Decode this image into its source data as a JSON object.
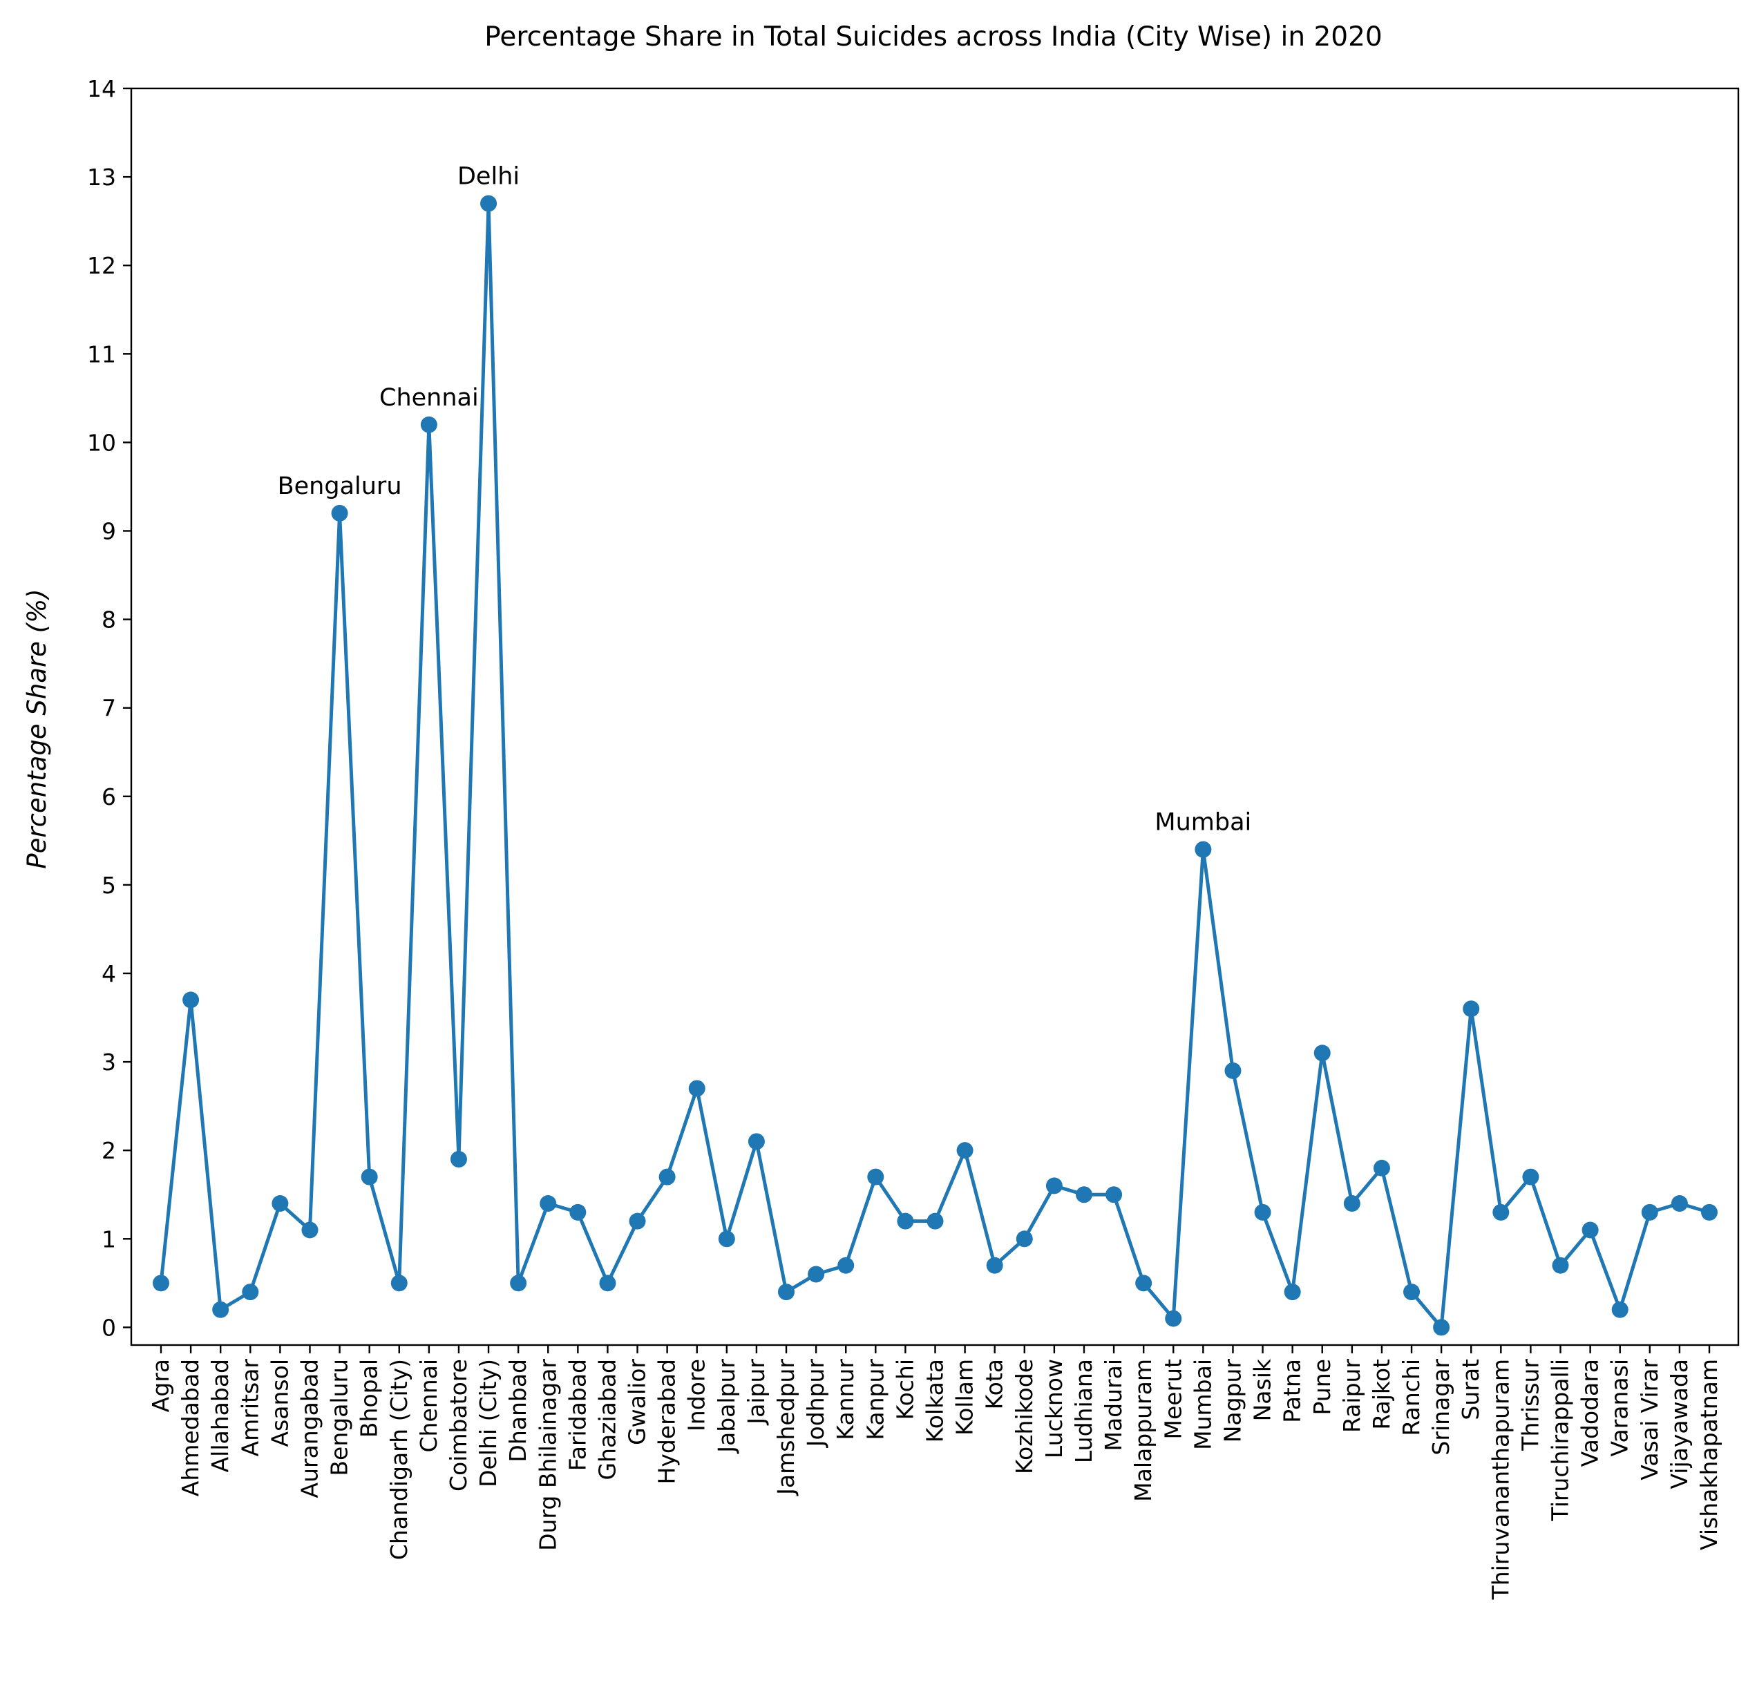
{
  "chart_data": {
    "type": "line",
    "title": "Percentage Share in Total Suicides across India (City Wise) in 2020",
    "xlabel": "",
    "ylabel": "Percentage Share (%)",
    "ylim": [
      -0.2,
      14
    ],
    "yticks": [
      0,
      1,
      2,
      3,
      4,
      5,
      6,
      7,
      8,
      9,
      10,
      11,
      12,
      13,
      14
    ],
    "grid": false,
    "legend": "none",
    "colors": {
      "series": "#1f77b4"
    },
    "categories": [
      "Agra",
      "Ahmedabad",
      "Allahabad",
      "Amritsar",
      "Asansol",
      "Aurangabad",
      "Bengaluru",
      "Bhopal",
      "Chandigarh (City)",
      "Chennai",
      "Coimbatore",
      "Delhi (City)",
      "Dhanbad",
      "Durg Bhilainagar",
      "Faridabad",
      "Ghaziabad",
      "Gwalior",
      "Hyderabad",
      "Indore",
      "Jabalpur",
      "Jaipur",
      "Jamshedpur",
      "Jodhpur",
      "Kannur",
      "Kanpur",
      "Kochi",
      "Kolkata",
      "Kollam",
      "Kota",
      "Kozhikode",
      "Lucknow",
      "Ludhiana",
      "Madurai",
      "Malappuram",
      "Meerut",
      "Mumbai",
      "Nagpur",
      "Nasik",
      "Patna",
      "Pune",
      "Raipur",
      "Rajkot",
      "Ranchi",
      "Srinagar",
      "Surat",
      "Thiruvananthapuram",
      "Thrissur",
      "Tiruchirappalli",
      "Vadodara",
      "Varanasi",
      "Vasai Virar",
      "Vijayawada",
      "Vishakhapatnam"
    ],
    "series": [
      {
        "values": [
          0.5,
          3.7,
          0.2,
          0.4,
          1.4,
          1.1,
          9.2,
          1.7,
          0.5,
          10.2,
          1.9,
          12.7,
          0.5,
          1.4,
          1.3,
          0.5,
          1.2,
          1.7,
          2.7,
          1.0,
          2.1,
          0.4,
          0.6,
          0.7,
          1.7,
          1.2,
          1.2,
          2.0,
          0.7,
          1.0,
          1.6,
          1.5,
          1.5,
          0.5,
          0.1,
          5.4,
          2.9,
          1.3,
          0.4,
          3.1,
          1.4,
          1.8,
          0.4,
          0.0,
          3.6,
          1.3,
          1.7,
          0.7,
          1.1,
          0.2,
          1.3,
          1.4,
          1.3
        ]
      }
    ],
    "annotations": [
      {
        "text": "Bengaluru",
        "category": "Bengaluru",
        "value": 9.2
      },
      {
        "text": "Chennai",
        "category": "Chennai",
        "value": 10.2
      },
      {
        "text": "Delhi",
        "category": "Delhi (City)",
        "value": 12.7
      },
      {
        "text": "Mumbai",
        "category": "Mumbai",
        "value": 5.4
      }
    ]
  }
}
